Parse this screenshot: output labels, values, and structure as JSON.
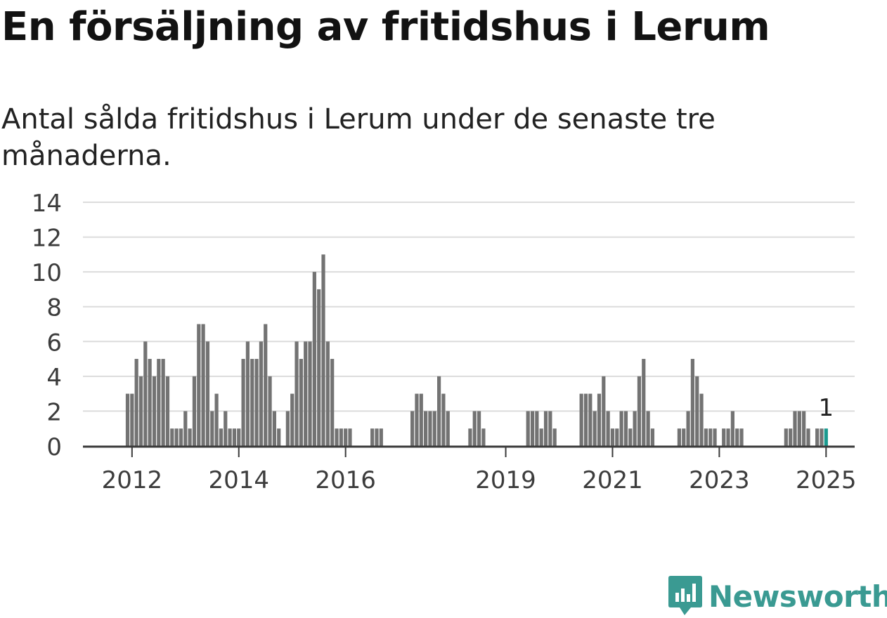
{
  "title": "En försäljning av fritidshus i Lerum",
  "subtitle": "Antal sålda fritidshus i Lerum under de senaste tre månaderna.",
  "brand": {
    "name": "Newsworthy",
    "icon": "newsworthy-logo-icon",
    "color": "#3a9a92"
  },
  "chart_data": {
    "type": "bar",
    "title": "En försäljning av fritidshus i Lerum",
    "xlabel": "",
    "ylabel": "",
    "ylim": [
      0,
      14
    ],
    "yticks": [
      0,
      2,
      4,
      6,
      8,
      10,
      12,
      14
    ],
    "xticks": [
      "2012",
      "2014",
      "2016",
      "2019",
      "2021",
      "2023",
      "2025"
    ],
    "grid": true,
    "bar_color": "#737373",
    "highlight_color": "#1a9a8f",
    "highlight_label": "1",
    "series": [
      {
        "x": [
          "2011-12",
          "2012-01",
          "2012-02",
          "2012-03",
          "2012-04",
          "2012-05",
          "2012-06",
          "2012-07",
          "2012-08",
          "2012-09",
          "2012-10",
          "2012-11",
          "2012-12",
          "2013-01",
          "2013-02",
          "2013-03",
          "2013-04",
          "2013-05",
          "2013-06",
          "2013-07",
          "2013-08",
          "2013-09",
          "2013-10",
          "2013-11",
          "2013-12",
          "2014-01",
          "2014-02",
          "2014-03",
          "2014-04",
          "2014-05",
          "2014-06",
          "2014-07",
          "2014-08",
          "2014-09",
          "2014-10",
          "2014-11",
          "2014-12",
          "2015-01",
          "2015-02",
          "2015-03",
          "2015-04",
          "2015-05",
          "2015-06",
          "2015-07",
          "2015-08",
          "2015-09",
          "2015-10",
          "2015-11",
          "2015-12",
          "2016-01",
          "2016-02",
          "2016-03",
          "2016-04",
          "2016-05",
          "2016-06",
          "2016-07",
          "2016-08",
          "2016-09",
          "2016-10",
          "2016-11",
          "2016-12",
          "2017-01",
          "2017-02",
          "2017-03",
          "2017-04",
          "2017-05",
          "2017-06",
          "2017-07",
          "2017-08",
          "2017-09",
          "2017-10",
          "2017-11",
          "2017-12",
          "2018-01",
          "2018-02",
          "2018-03",
          "2018-04",
          "2018-05",
          "2018-06",
          "2018-07",
          "2018-08",
          "2018-09",
          "2018-10",
          "2018-11",
          "2018-12",
          "2019-01",
          "2019-02",
          "2019-03",
          "2019-04",
          "2019-05",
          "2019-06",
          "2019-07",
          "2019-08",
          "2019-09",
          "2019-10",
          "2019-11",
          "2019-12",
          "2020-01",
          "2020-02",
          "2020-03",
          "2020-04",
          "2020-05",
          "2020-06",
          "2020-07",
          "2020-08",
          "2020-09",
          "2020-10",
          "2020-11",
          "2020-12",
          "2021-01",
          "2021-02",
          "2021-03",
          "2021-04",
          "2021-05",
          "2021-06",
          "2021-07",
          "2021-08",
          "2021-09",
          "2021-10",
          "2021-11",
          "2021-12",
          "2022-01",
          "2022-02",
          "2022-03",
          "2022-04",
          "2022-05",
          "2022-06",
          "2022-07",
          "2022-08",
          "2022-09",
          "2022-10",
          "2022-11",
          "2022-12",
          "2023-01",
          "2023-02",
          "2023-03",
          "2023-04",
          "2023-05",
          "2023-06",
          "2023-07",
          "2023-08",
          "2023-09",
          "2023-10",
          "2023-11",
          "2023-12",
          "2024-01",
          "2024-02",
          "2024-03",
          "2024-04",
          "2024-05",
          "2024-06",
          "2024-07",
          "2024-08",
          "2024-09",
          "2024-10",
          "2024-11",
          "2024-12",
          "2025-01"
        ],
        "values": [
          3,
          3,
          5,
          4,
          6,
          5,
          4,
          5,
          5,
          4,
          1,
          1,
          1,
          2,
          1,
          4,
          7,
          7,
          6,
          2,
          3,
          1,
          2,
          1,
          1,
          1,
          5,
          6,
          5,
          5,
          6,
          7,
          4,
          2,
          1,
          0,
          2,
          3,
          6,
          5,
          6,
          6,
          10,
          9,
          11,
          6,
          5,
          1,
          1,
          1,
          1,
          0,
          0,
          0,
          0,
          1,
          1,
          1,
          0,
          0,
          0,
          0,
          0,
          0,
          2,
          3,
          3,
          2,
          2,
          2,
          4,
          3,
          2,
          0,
          0,
          0,
          0,
          1,
          2,
          2,
          1,
          0,
          0,
          0,
          0,
          0,
          0,
          0,
          0,
          0,
          2,
          2,
          2,
          1,
          2,
          2,
          1,
          0,
          0,
          0,
          0,
          0,
          3,
          3,
          3,
          2,
          3,
          4,
          2,
          1,
          1,
          2,
          2,
          1,
          2,
          4,
          5,
          2,
          1,
          0,
          0,
          0,
          0,
          0,
          1,
          1,
          2,
          5,
          4,
          3,
          1,
          1,
          1,
          0,
          1,
          1,
          2,
          1,
          1,
          0,
          0,
          0,
          0,
          0,
          0,
          0,
          0,
          0,
          1,
          1,
          2,
          2,
          2,
          1,
          0,
          1,
          1,
          1
        ]
      }
    ]
  }
}
